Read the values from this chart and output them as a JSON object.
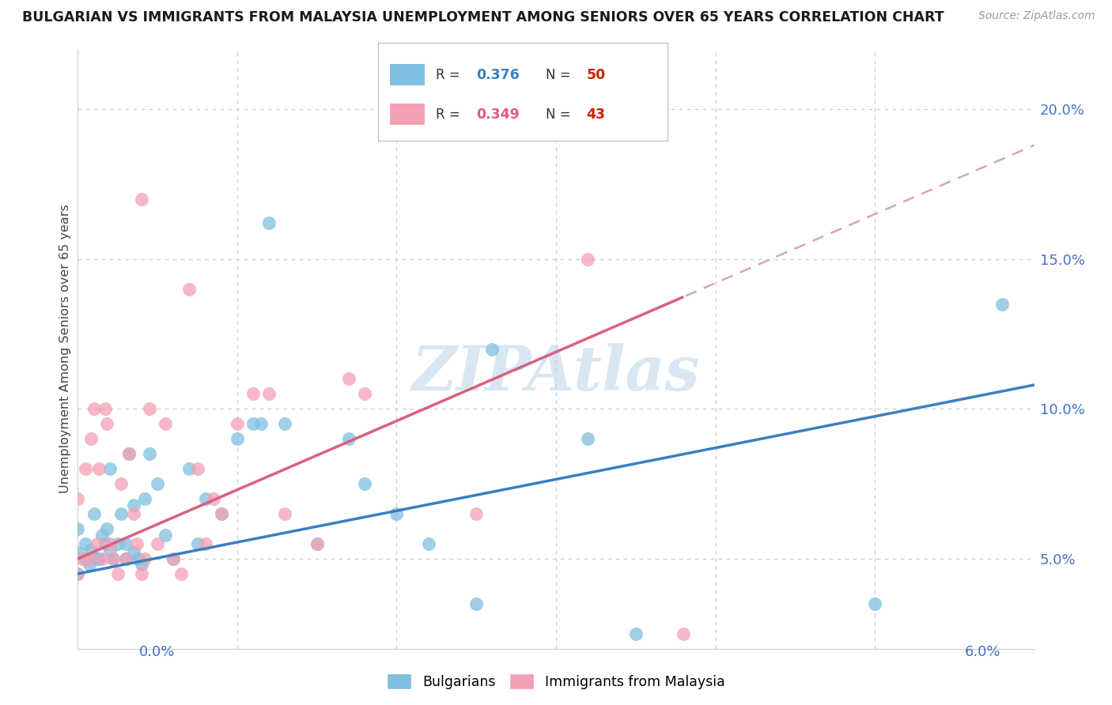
{
  "title": "BULGARIAN VS IMMIGRANTS FROM MALAYSIA UNEMPLOYMENT AMONG SENIORS OVER 65 YEARS CORRELATION CHART",
  "source": "Source: ZipAtlas.com",
  "ylabel": "Unemployment Among Seniors over 65 years",
  "yticks": [
    5.0,
    10.0,
    15.0,
    20.0
  ],
  "ytick_labels": [
    "5.0%",
    "10.0%",
    "15.0%",
    "20.0%"
  ],
  "xlim": [
    0.0,
    6.0
  ],
  "ylim": [
    2.0,
    22.0
  ],
  "color_blue": "#7fbfdf",
  "color_pink": "#f4a0b5",
  "color_blue_line": "#3a7fc1",
  "color_pink_line": "#d96080",
  "color_pink_dash": "#d0909a",
  "watermark": "ZIPAtlas",
  "blue_intercept": 4.5,
  "blue_slope": 1.05,
  "pink_intercept": 5.0,
  "pink_slope": 2.3,
  "pink_max_x": 3.8,
  "bulgarians_x": [
    0.0,
    0.0,
    0.0,
    0.05,
    0.05,
    0.07,
    0.08,
    0.1,
    0.12,
    0.13,
    0.15,
    0.17,
    0.18,
    0.2,
    0.2,
    0.22,
    0.25,
    0.27,
    0.3,
    0.3,
    0.32,
    0.35,
    0.35,
    0.38,
    0.4,
    0.42,
    0.45,
    0.5,
    0.55,
    0.6,
    0.7,
    0.75,
    0.8,
    0.9,
    1.0,
    1.1,
    1.15,
    1.2,
    1.3,
    1.5,
    1.7,
    1.8,
    2.0,
    2.2,
    2.5,
    2.6,
    3.2,
    3.5,
    5.0,
    5.8
  ],
  "bulgarians_y": [
    4.5,
    5.2,
    6.0,
    5.0,
    5.5,
    4.8,
    5.3,
    6.5,
    5.0,
    5.0,
    5.8,
    5.5,
    6.0,
    5.3,
    8.0,
    5.0,
    5.5,
    6.5,
    5.0,
    5.5,
    8.5,
    5.2,
    6.8,
    5.0,
    4.8,
    7.0,
    8.5,
    7.5,
    5.8,
    5.0,
    8.0,
    5.5,
    7.0,
    6.5,
    9.0,
    9.5,
    9.5,
    16.2,
    9.5,
    5.5,
    9.0,
    7.5,
    6.5,
    5.5,
    3.5,
    12.0,
    9.0,
    2.5,
    3.5,
    13.5
  ],
  "malaysia_x": [
    0.0,
    0.0,
    0.03,
    0.05,
    0.07,
    0.08,
    0.1,
    0.12,
    0.13,
    0.15,
    0.17,
    0.18,
    0.2,
    0.22,
    0.25,
    0.27,
    0.3,
    0.32,
    0.35,
    0.37,
    0.4,
    0.42,
    0.45,
    0.5,
    0.55,
    0.6,
    0.65,
    0.7,
    0.75,
    0.8,
    0.85,
    0.9,
    1.0,
    1.1,
    1.2,
    1.3,
    1.5,
    1.7,
    1.8,
    2.5,
    3.2,
    3.8,
    0.4
  ],
  "malaysia_y": [
    4.5,
    7.0,
    5.0,
    8.0,
    5.0,
    9.0,
    10.0,
    5.5,
    8.0,
    5.0,
    10.0,
    9.5,
    5.5,
    5.0,
    4.5,
    7.5,
    5.0,
    8.5,
    6.5,
    5.5,
    4.5,
    5.0,
    10.0,
    5.5,
    9.5,
    5.0,
    4.5,
    14.0,
    8.0,
    5.5,
    7.0,
    6.5,
    9.5,
    10.5,
    10.5,
    6.5,
    5.5,
    11.0,
    10.5,
    6.5,
    15.0,
    2.5,
    17.0
  ]
}
